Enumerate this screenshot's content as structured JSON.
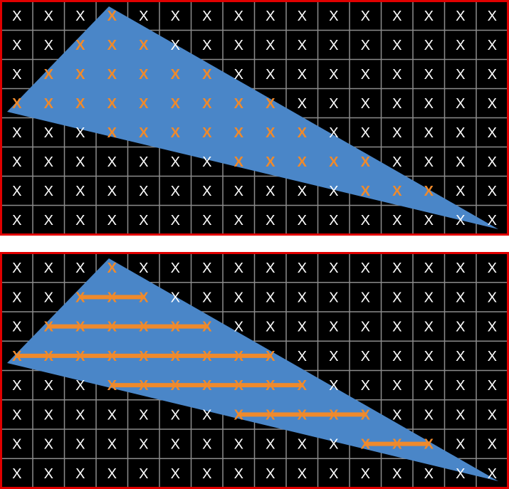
{
  "grid": {
    "rows": 8,
    "cols": 16,
    "mark": "X"
  },
  "colors": {
    "background": "#000000",
    "grid_line": "#8c8c8c",
    "frame": "#e00000",
    "triangle": "#4a86c8",
    "mark_default": "#ffffff",
    "mark_covered": "#ef8a2c",
    "span_line": "#ef8a2c"
  },
  "panels": [
    {
      "id": "covered-samples",
      "covered_cells": [
        [
          0,
          3
        ],
        [
          1,
          2
        ],
        [
          1,
          3
        ],
        [
          1,
          4
        ],
        [
          2,
          1
        ],
        [
          2,
          2
        ],
        [
          2,
          3
        ],
        [
          2,
          4
        ],
        [
          2,
          5
        ],
        [
          2,
          6
        ],
        [
          3,
          0
        ],
        [
          3,
          1
        ],
        [
          3,
          2
        ],
        [
          3,
          3
        ],
        [
          3,
          4
        ],
        [
          3,
          5
        ],
        [
          3,
          6
        ],
        [
          3,
          7
        ],
        [
          3,
          8
        ],
        [
          4,
          3
        ],
        [
          4,
          4
        ],
        [
          4,
          5
        ],
        [
          4,
          6
        ],
        [
          4,
          7
        ],
        [
          4,
          8
        ],
        [
          4,
          9
        ],
        [
          5,
          7
        ],
        [
          5,
          8
        ],
        [
          5,
          9
        ],
        [
          5,
          10
        ],
        [
          5,
          11
        ],
        [
          6,
          11
        ],
        [
          6,
          12
        ],
        [
          6,
          13
        ]
      ],
      "spans": []
    },
    {
      "id": "scanline-spans",
      "covered_cells": [
        [
          0,
          3
        ],
        [
          1,
          2
        ],
        [
          1,
          3
        ],
        [
          1,
          4
        ],
        [
          2,
          1
        ],
        [
          2,
          2
        ],
        [
          2,
          3
        ],
        [
          2,
          4
        ],
        [
          2,
          5
        ],
        [
          2,
          6
        ],
        [
          3,
          0
        ],
        [
          3,
          1
        ],
        [
          3,
          2
        ],
        [
          3,
          3
        ],
        [
          3,
          4
        ],
        [
          3,
          5
        ],
        [
          3,
          6
        ],
        [
          3,
          7
        ],
        [
          3,
          8
        ],
        [
          4,
          3
        ],
        [
          4,
          4
        ],
        [
          4,
          5
        ],
        [
          4,
          6
        ],
        [
          4,
          7
        ],
        [
          4,
          8
        ],
        [
          4,
          9
        ],
        [
          5,
          7
        ],
        [
          5,
          8
        ],
        [
          5,
          9
        ],
        [
          5,
          10
        ],
        [
          5,
          11
        ],
        [
          6,
          11
        ],
        [
          6,
          12
        ],
        [
          6,
          13
        ]
      ],
      "spans": [
        {
          "row": 1,
          "from": 2,
          "to": 4
        },
        {
          "row": 2,
          "from": 1,
          "to": 6
        },
        {
          "row": 3,
          "from": 0,
          "to": 8
        },
        {
          "row": 4,
          "from": 3,
          "to": 9
        },
        {
          "row": 5,
          "from": 7,
          "to": 11
        },
        {
          "row": 6,
          "from": 11,
          "to": 13
        }
      ]
    }
  ]
}
